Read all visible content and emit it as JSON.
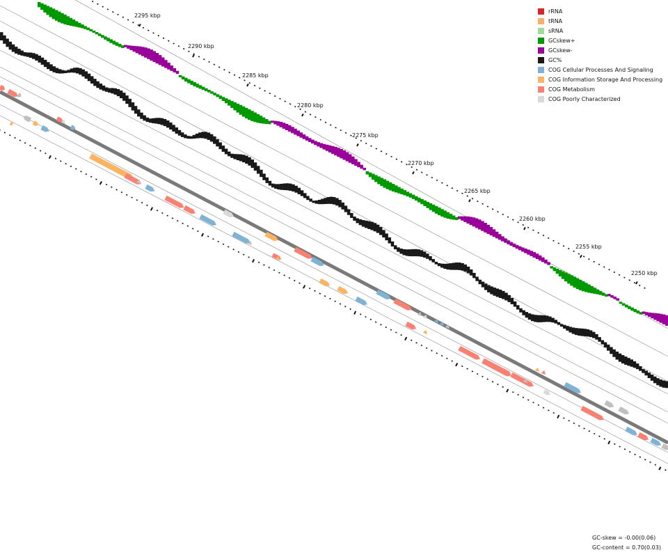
{
  "legend": {
    "items": [
      {
        "label": "rRNA",
        "color": "#d62728"
      },
      {
        "label": "tRNA",
        "color": "#fdae6b"
      },
      {
        "label": "sRNA",
        "color": "#a1d99b"
      },
      {
        "label": "GCskew+",
        "color": "#009900"
      },
      {
        "label": "GCskew-",
        "color": "#990099"
      },
      {
        "label": "GC%",
        "color": "#191919"
      },
      {
        "label": "COG Cellular Processes And Signaling",
        "color": "#7fb3d5"
      },
      {
        "label": "COG Information Storage And Processing",
        "color": "#fdb462"
      },
      {
        "label": "COG Metabolism",
        "color": "#fa8072"
      },
      {
        "label": "COG Poorly Characterized",
        "color": "#d9d9d9"
      }
    ]
  },
  "ticks": {
    "labels": [
      "2295 kbp",
      "2290 kbp",
      "2285 kbp",
      "2280 kbp",
      "2275 kbp",
      "2270 kbp",
      "2265 kbp",
      "2260 kbp",
      "2255 kbp",
      "2250 kbp"
    ]
  },
  "stats": {
    "gc_skew": "GC-skew = -0.00(0.06)",
    "gc_content": "GC-content = 0.70(0.03)"
  },
  "colors": {
    "gc_skew_pos": "#009900",
    "gc_skew_neg": "#990099",
    "gc_content": "#191919",
    "backbone": "#7a7a7a",
    "guide": "#9a9a9a",
    "tick": "#111111"
  }
}
